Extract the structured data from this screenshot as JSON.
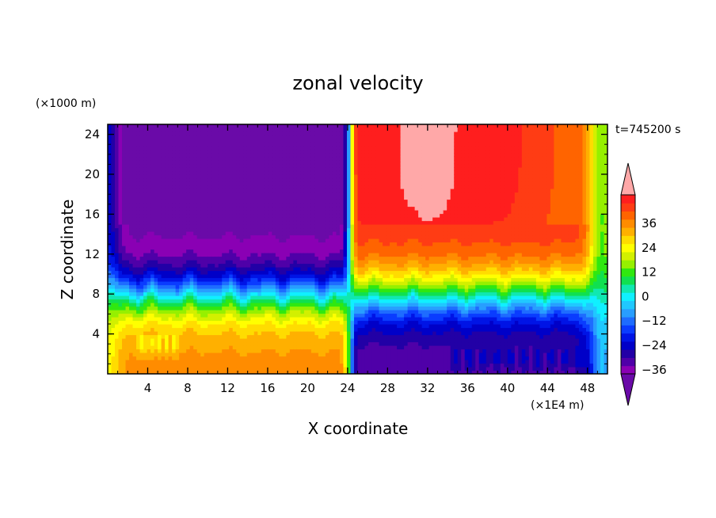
{
  "chart_data": {
    "type": "heatmap",
    "title": "zonal velocity",
    "xlabel": "X coordinate",
    "ylabel": "Z coordinate",
    "x_unit": "(×1E4 m)",
    "y_unit": "(×1000 m)",
    "time_label": "t=745200 s",
    "xlim": [
      0,
      50
    ],
    "ylim": [
      0,
      25
    ],
    "x_ticks": [
      4,
      8,
      12,
      16,
      20,
      24,
      28,
      32,
      36,
      40,
      44,
      48
    ],
    "y_ticks": [
      4,
      8,
      12,
      16,
      20,
      24
    ],
    "colorbar": {
      "min": -42,
      "max": 42,
      "step": 4,
      "extend": "both",
      "tick_values": [
        36,
        24,
        12,
        0,
        -12,
        -24,
        -36
      ],
      "tick_labels": [
        "36",
        "24",
        "12",
        "0",
        "−12",
        "−24",
        "−36"
      ],
      "colors": [
        "#6a0aa8",
        "#8a00b4",
        "#4f00a8",
        "#2200a6",
        "#0000c8",
        "#0014e6",
        "#0a3cff",
        "#1e6cff",
        "#289eff",
        "#20c8ff",
        "#10f0ff",
        "#10e8b0",
        "#10e050",
        "#30e810",
        "#96f000",
        "#d2f000",
        "#ffff00",
        "#ffdc00",
        "#ffb000",
        "#ff8c00",
        "#ff6400",
        "#ff3c14",
        "#ff1e1e",
        "#ffa8a8"
      ]
    },
    "field_description_values": {
      "left_half_x": [
        0,
        24
      ],
      "right_half_x": [
        24,
        50
      ],
      "max_speed": 42,
      "shear_height": 8
    }
  }
}
